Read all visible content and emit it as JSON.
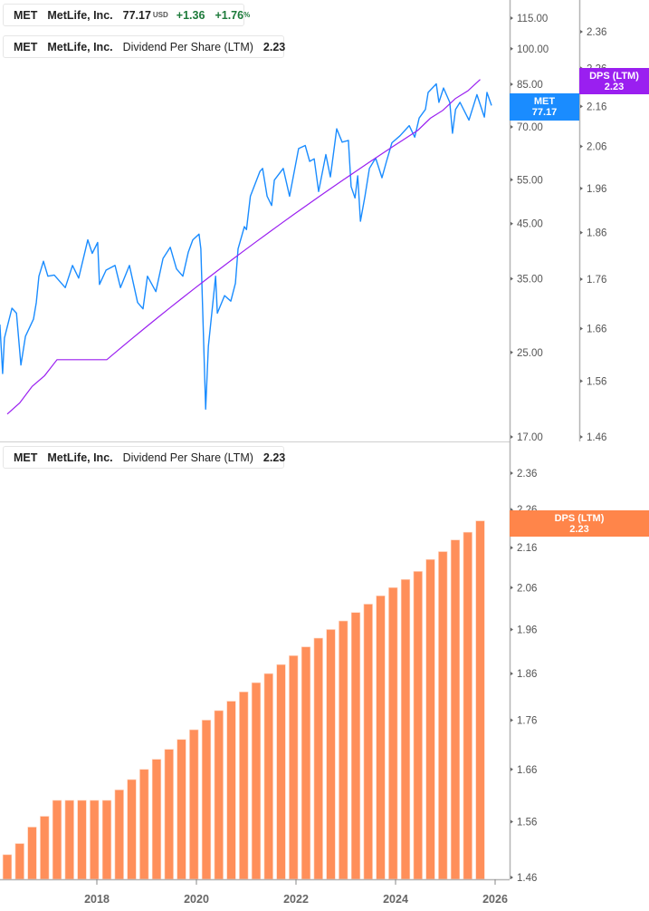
{
  "legends": {
    "price": {
      "ticker": "MET",
      "name": "MetLife, Inc.",
      "price": "77.17",
      "currency": "USD",
      "change": "+1.36",
      "change_pct": "+1.76",
      "pct_sign": "%"
    },
    "dps_top": {
      "ticker": "MET",
      "name": "MetLife, Inc.",
      "metric": "Dividend Per Share (LTM)",
      "value": "2.23"
    },
    "dps_bottom": {
      "ticker": "MET",
      "name": "MetLife, Inc.",
      "metric": "Dividend Per Share (LTM)",
      "value": "2.23"
    }
  },
  "tags": {
    "price": {
      "label": "MET",
      "value": "77.17"
    },
    "dps_top": {
      "label": "DPS (LTM)",
      "value": "2.23"
    },
    "dps_bottom": {
      "label": "DPS (LTM)",
      "value": "2.23"
    }
  },
  "colors": {
    "price": "#1a8cff",
    "dps_line": "#9a1ff0",
    "dps_bars": "#ff8f5a",
    "positive": "#1c7a3a"
  },
  "chart_data": [
    {
      "type": "line",
      "scale": "log",
      "series": [
        {
          "name": "MET",
          "axis": "price",
          "points": [
            [
              "2016-01-20",
              28.4
            ],
            [
              "2016-02-10",
              22.7
            ],
            [
              "2016-02-23",
              26.7
            ],
            [
              "2016-04-17",
              30.6
            ],
            [
              "2016-05-20",
              29.9
            ],
            [
              "2016-06-22",
              23.6
            ],
            [
              "2016-07-25",
              26.9
            ],
            [
              "2016-09-23",
              29.1
            ],
            [
              "2016-10-13",
              31.4
            ],
            [
              "2016-11-02",
              35.4
            ],
            [
              "2016-12-05",
              37.9
            ],
            [
              "2017-01-07",
              35.4
            ],
            [
              "2017-02-23",
              35.6
            ],
            [
              "2017-05-13",
              33.6
            ],
            [
              "2017-07-05",
              37.2
            ],
            [
              "2017-08-20",
              35.1
            ],
            [
              "2017-10-26",
              41.8
            ],
            [
              "2017-11-28",
              39.3
            ],
            [
              "2018-01-07",
              41.3
            ],
            [
              "2018-01-20",
              34.1
            ],
            [
              "2018-03-08",
              36.4
            ],
            [
              "2018-05-13",
              37.2
            ],
            [
              "2018-06-22",
              33.6
            ],
            [
              "2018-08-27",
              37.2
            ],
            [
              "2018-10-26",
              31.4
            ],
            [
              "2018-12-05",
              30.5
            ],
            [
              "2019-01-07",
              35.4
            ],
            [
              "2019-03-08",
              33.0
            ],
            [
              "2019-04-30",
              38.4
            ],
            [
              "2019-06-22",
              40.4
            ],
            [
              "2019-08-07",
              36.6
            ],
            [
              "2019-09-23",
              35.4
            ],
            [
              "2019-11-02",
              39.5
            ],
            [
              "2019-12-05",
              41.8
            ],
            [
              "2020-01-20",
              42.9
            ],
            [
              "2020-02-03",
              40.1
            ],
            [
              "2020-03-08",
              19.3
            ],
            [
              "2020-03-28",
              25.7
            ],
            [
              "2020-05-20",
              35.4
            ],
            [
              "2020-06-02",
              29.9
            ],
            [
              "2020-07-25",
              32.4
            ],
            [
              "2020-09-10",
              31.6
            ],
            [
              "2020-10-13",
              34.3
            ],
            [
              "2020-11-02",
              40.1
            ],
            [
              "2020-12-18",
              44.4
            ],
            [
              "2021-01-03",
              43.8
            ],
            [
              "2021-02-01",
              51.0
            ],
            [
              "2021-04-10",
              57.1
            ],
            [
              "2021-04-30",
              57.9
            ],
            [
              "2021-06-02",
              51.0
            ],
            [
              "2021-07-05",
              48.9
            ],
            [
              "2021-07-25",
              54.9
            ],
            [
              "2021-09-29",
              57.9
            ],
            [
              "2021-11-15",
              51.0
            ],
            [
              "2022-01-20",
              63.4
            ],
            [
              "2022-03-08",
              64.3
            ],
            [
              "2022-04-10",
              59.8
            ],
            [
              "2022-05-13",
              60.5
            ],
            [
              "2022-06-15",
              52.1
            ],
            [
              "2022-08-07",
              61.7
            ],
            [
              "2022-09-10",
              55.7
            ],
            [
              "2022-10-26",
              69.4
            ],
            [
              "2022-12-05",
              65.3
            ],
            [
              "2023-01-20",
              65.8
            ],
            [
              "2023-02-10",
              53.3
            ],
            [
              "2023-03-08",
              50.6
            ],
            [
              "2023-03-28",
              56.0
            ],
            [
              "2023-04-17",
              45.5
            ],
            [
              "2023-05-20",
              51.0
            ],
            [
              "2023-06-22",
              57.9
            ],
            [
              "2023-08-07",
              60.7
            ],
            [
              "2023-09-23",
              55.5
            ],
            [
              "2023-10-26",
              59.8
            ],
            [
              "2023-12-05",
              65.1
            ],
            [
              "2024-02-03",
              67.2
            ],
            [
              "2024-04-10",
              70.4
            ],
            [
              "2024-05-20",
              66.8
            ],
            [
              "2024-06-22",
              72.9
            ],
            [
              "2024-08-07",
              75.8
            ],
            [
              "2024-08-27",
              81.9
            ],
            [
              "2024-10-26",
              85.2
            ],
            [
              "2024-11-15",
              78.3
            ],
            [
              "2024-12-18",
              83.6
            ],
            [
              "2025-02-03",
              78.3
            ],
            [
              "2025-02-23",
              68.0
            ],
            [
              "2025-03-15",
              75.8
            ],
            [
              "2025-04-17",
              78.3
            ],
            [
              "2025-06-22",
              72.2
            ],
            [
              "2025-08-20",
              81.1
            ],
            [
              "2025-10-13",
              73.2
            ],
            [
              "2025-11-02",
              81.9
            ],
            [
              "2025-12-05",
              77.17
            ]
          ]
        },
        {
          "name": "Dividend Per Share (LTM)",
          "axis": "dps",
          "from_quarter": "2016-Q1"
        }
      ],
      "axes": {
        "price": {
          "ticks": [
            "115.00",
            "100.00",
            "85.00",
            "70.00",
            "55.00",
            "45.00",
            "35.00",
            "25.00",
            "17.00"
          ],
          "range": [
            17,
            115
          ]
        },
        "dps": {
          "ticks": [
            "2.36",
            "2.26",
            "2.16",
            "2.06",
            "1.96",
            "1.86",
            "1.76",
            "1.66",
            "1.56",
            "1.46"
          ],
          "range": [
            1.46,
            2.36
          ]
        }
      }
    },
    {
      "type": "bar",
      "scale": "log",
      "name": "Dividend Per Share (LTM)",
      "categories": [
        "2015-Q4",
        "2016-Q1",
        "2016-Q2",
        "2016-Q3",
        "2016-Q4",
        "2017-Q1",
        "2017-Q2",
        "2017-Q3",
        "2017-Q4",
        "2018-Q1",
        "2018-Q2",
        "2018-Q3",
        "2018-Q4",
        "2019-Q1",
        "2019-Q2",
        "2019-Q3",
        "2019-Q4",
        "2020-Q1",
        "2020-Q2",
        "2020-Q3",
        "2020-Q4",
        "2021-Q1",
        "2021-Q2",
        "2021-Q3",
        "2021-Q4",
        "2022-Q1",
        "2022-Q2",
        "2022-Q3",
        "2022-Q4",
        "2023-Q1",
        "2023-Q2",
        "2023-Q3",
        "2023-Q4",
        "2024-Q1",
        "2024-Q2",
        "2024-Q3",
        "2024-Q4",
        "2025-Q1",
        "2025-Q2",
        "2025-Q3"
      ],
      "values": [
        1.47,
        1.5,
        1.52,
        1.55,
        1.57,
        1.6,
        1.6,
        1.6,
        1.6,
        1.6,
        1.62,
        1.64,
        1.66,
        1.68,
        1.7,
        1.72,
        1.74,
        1.76,
        1.78,
        1.8,
        1.82,
        1.84,
        1.86,
        1.88,
        1.9,
        1.92,
        1.94,
        1.96,
        1.98,
        2.0,
        2.02,
        2.04,
        2.06,
        2.08,
        2.1,
        2.13,
        2.15,
        2.18,
        2.2,
        2.23
      ],
      "yticks": [
        "2.36",
        "2.26",
        "2.16",
        "2.06",
        "1.96",
        "1.86",
        "1.76",
        "1.66",
        "1.56",
        "1.46"
      ],
      "ylim": [
        1.46,
        2.36
      ],
      "xticks": [
        "2018",
        "2020",
        "2022",
        "2024",
        "2026"
      ]
    }
  ]
}
